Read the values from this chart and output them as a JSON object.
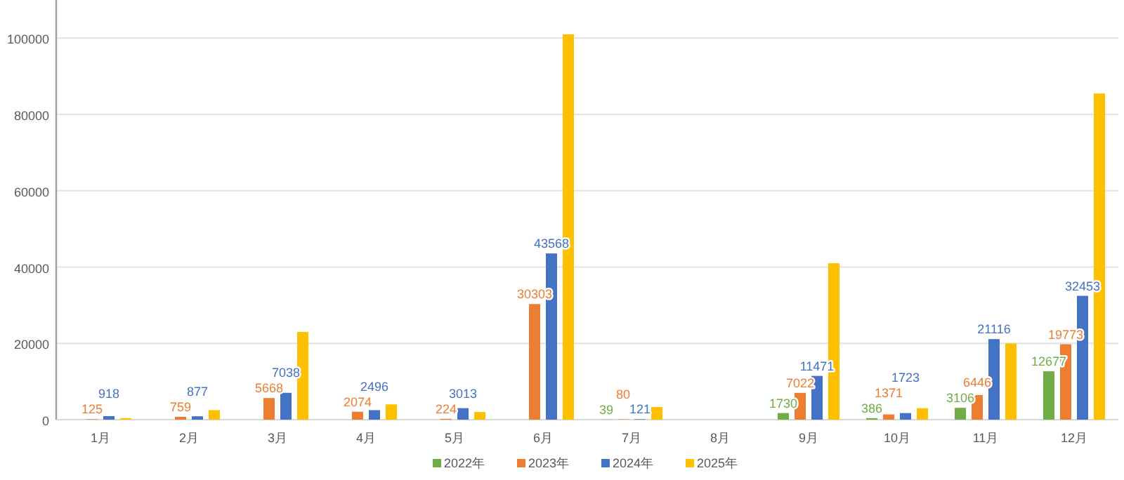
{
  "chart_data": {
    "type": "bar",
    "categories": [
      "1月",
      "2月",
      "3月",
      "4月",
      "5月",
      "6月",
      "7月",
      "8月",
      "9月",
      "10月",
      "11月",
      "12月"
    ],
    "series": [
      {
        "name": "2022年",
        "color": "#70ad47",
        "values": [
          null,
          null,
          null,
          null,
          null,
          null,
          39,
          null,
          1730,
          386,
          3106,
          12677
        ],
        "value_labels": [
          null,
          null,
          null,
          null,
          null,
          null,
          "39",
          null,
          "1730",
          "386",
          "3106",
          "12677"
        ]
      },
      {
        "name": "2023年",
        "color": "#ed7d31",
        "values": [
          125,
          759,
          5668,
          2074,
          224,
          30303,
          80,
          null,
          7022,
          1371,
          6446,
          19773
        ],
        "value_labels": [
          "125",
          "759",
          "5668",
          "2074",
          "224",
          "30303",
          "80",
          null,
          "7022",
          "1371",
          "6446",
          "19773"
        ]
      },
      {
        "name": "2024年",
        "color": "#4472c4",
        "values": [
          918,
          877,
          7038,
          2496,
          3013,
          43568,
          121,
          null,
          11471,
          1723,
          21116,
          32453
        ],
        "value_labels": [
          "918",
          "877",
          "7038",
          "2496",
          "3013",
          "43568",
          "121",
          null,
          "11471",
          "1723",
          "21116",
          "32453"
        ]
      },
      {
        "name": "2025年",
        "color": "#ffc000",
        "values": [
          400,
          2500,
          23000,
          4000,
          2000,
          101000,
          3300,
          null,
          41000,
          3000,
          20000,
          85500
        ]
      }
    ],
    "ylim": [
      0,
      110000
    ],
    "yticks": [
      0,
      20000,
      40000,
      60000,
      80000,
      100000
    ],
    "grid": "y",
    "legend": "bottom"
  }
}
